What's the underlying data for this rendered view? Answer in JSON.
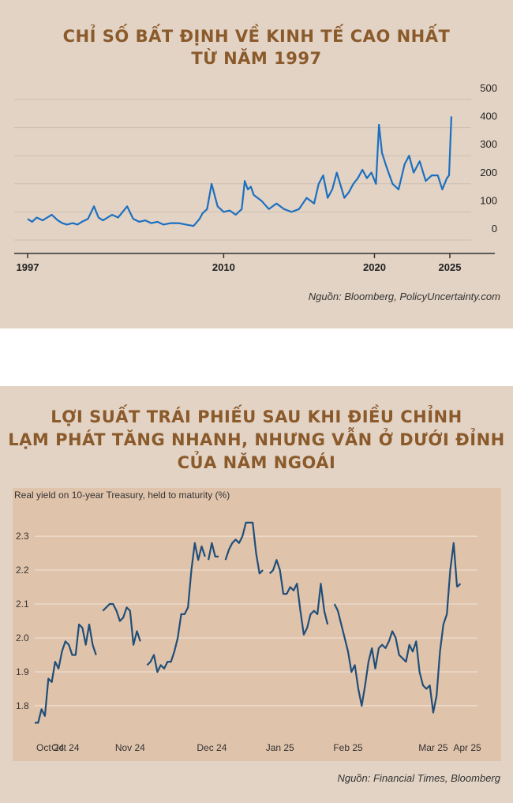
{
  "chart_data": [
    {
      "type": "line",
      "title": "CHỈ SỐ BẤT ĐỊNH VỀ KINH TẾ CAO NHẤT\nTỪ NĂM 1997",
      "xlabel": "",
      "ylabel": "",
      "x_ticks": [
        "1997",
        "2010",
        "2020",
        "2025"
      ],
      "y_ticks": [
        "0",
        "100",
        "200",
        "300",
        "400",
        "500"
      ],
      "xlim": [
        1997,
        2027.5
      ],
      "ylim": [
        0,
        500
      ],
      "y_axis_side": "right",
      "grid": true,
      "line_color": "#1c6fc0",
      "series": [
        {
          "x": [
            1997,
            1997.3,
            1997.6,
            1998,
            1998.3,
            1998.6,
            1999,
            1999.3,
            1999.6,
            2000,
            2000.3,
            2000.6,
            2001,
            2001.4,
            2001.7,
            2002,
            2002.3,
            2002.6,
            2003,
            2003.3,
            2003.6,
            2004,
            2004.4,
            2004.8,
            2005.2,
            2005.6,
            2006,
            2006.5,
            2007,
            2007.5,
            2008,
            2008.4,
            2008.6,
            2008.9,
            2009.2,
            2009.6,
            2010,
            2010.4,
            2010.8,
            2011.2,
            2011.4,
            2011.6,
            2011.8,
            2012,
            2012.5,
            2013,
            2013.5,
            2014,
            2014.5,
            2015,
            2015.5,
            2016,
            2016.3,
            2016.6,
            2016.9,
            2017.2,
            2017.5,
            2018,
            2018.3,
            2018.6,
            2018.9,
            2019.2,
            2019.5,
            2019.8,
            2020.1,
            2020.3,
            2020.5,
            2020.8,
            2021.2,
            2021.6,
            2022,
            2022.3,
            2022.6,
            2023,
            2023.4,
            2023.8,
            2024.2,
            2024.5,
            2024.8,
            2024.95,
            2025.1
          ],
          "y": [
            75,
            65,
            80,
            70,
            80,
            90,
            70,
            60,
            55,
            60,
            55,
            65,
            75,
            120,
            80,
            70,
            80,
            90,
            80,
            100,
            120,
            75,
            65,
            70,
            60,
            65,
            55,
            60,
            60,
            55,
            50,
            75,
            95,
            110,
            200,
            120,
            100,
            105,
            90,
            110,
            210,
            180,
            190,
            160,
            140,
            110,
            130,
            110,
            100,
            110,
            150,
            130,
            200,
            230,
            150,
            180,
            240,
            150,
            170,
            200,
            220,
            250,
            220,
            240,
            200,
            410,
            310,
            260,
            200,
            180,
            270,
            300,
            240,
            280,
            210,
            230,
            230,
            180,
            220,
            230,
            440
          ]
        }
      ]
    },
    {
      "type": "line",
      "title": "LỢI SUẤT TRÁI PHIẾU SAU KHI ĐIỀU CHỈNH\nLẠM PHÁT TĂNG NHANH, NHƯNG VẪN Ở DƯỚI ĐỈNH\nCỦA NĂM NGOÁI",
      "subtitle": "Real yield on 10-year Treasury, held to maturity (%)",
      "xlabel": "",
      "ylabel": "",
      "x_ticks": [
        "Oct 24",
        "Oct 24",
        "Nov 24",
        "Dec 24",
        "Jan 25",
        "Feb 25",
        "Mar 25",
        "Apr 25"
      ],
      "y_ticks": [
        "1.8",
        "1.9",
        "2.0",
        "2.1",
        "2.2",
        "2.3"
      ],
      "xlim": [
        0,
        130
      ],
      "ylim": [
        1.73,
        2.37
      ],
      "grid": true,
      "line_color": "#1f4e79",
      "segments": [
        {
          "x": [
            0,
            1,
            2,
            3,
            4,
            5,
            6,
            7,
            8,
            9,
            10,
            11,
            12,
            13,
            14,
            15,
            16,
            17,
            18,
            19,
            20,
            21,
            22
          ],
          "y": [
            1.75,
            1.75,
            1.79,
            1.77,
            1.88,
            1.87,
            1.93,
            1.91,
            1.96,
            1.99,
            1.98,
            1.95,
            1.95,
            2.04,
            2.03,
            1.98,
            2.04,
            1.98,
            1.95,
            null,
            null,
            null,
            null
          ]
        },
        {
          "x": [
            20,
            21,
            22,
            23,
            24,
            25,
            26,
            27,
            28,
            29,
            30,
            31
          ],
          "y": [
            2.08,
            2.09,
            2.1,
            2.1,
            2.08,
            2.05,
            2.06,
            2.09,
            2.08,
            1.98,
            2.02,
            1.99
          ]
        },
        {
          "x": [
            33,
            34,
            35,
            36,
            37,
            38,
            39,
            40,
            41,
            42,
            43,
            44,
            45,
            46,
            47,
            48,
            49,
            50
          ],
          "y": [
            1.92,
            1.93,
            1.95,
            1.9,
            1.92,
            1.91,
            1.93,
            1.93,
            1.96,
            2.0,
            2.07,
            2.07,
            2.09,
            2.2,
            2.28,
            2.23,
            2.27,
            2.24
          ]
        },
        {
          "x": [
            51,
            52,
            53,
            54
          ],
          "y": [
            2.23,
            2.28,
            2.24,
            2.24
          ]
        },
        {
          "x": [
            56,
            57,
            58,
            59,
            60,
            61,
            62,
            63,
            64,
            65,
            66,
            67,
            68,
            69
          ],
          "y": [
            2.23,
            2.26,
            2.28,
            2.29,
            2.28,
            2.3,
            2.34,
            2.34,
            2.34,
            2.25,
            2.19,
            2.2,
            null,
            null
          ]
        },
        {
          "x": [
            69,
            70,
            71,
            72,
            73,
            74,
            75,
            76,
            77,
            78,
            79,
            80,
            81,
            82,
            83,
            84,
            85
          ],
          "y": [
            2.19,
            2.2,
            2.23,
            2.2,
            2.13,
            2.13,
            2.15,
            2.14,
            2.16,
            2.08,
            2.01,
            2.03,
            2.07,
            2.08,
            2.07,
            2.16,
            2.08
          ]
        },
        {
          "x": [
            85,
            86
          ],
          "y": [
            2.08,
            2.04
          ]
        },
        {
          "x": [
            88,
            89,
            90,
            91,
            92,
            93,
            94,
            95,
            96,
            97,
            98,
            99,
            100,
            101,
            102,
            103,
            104,
            105,
            106,
            107,
            108,
            109,
            110,
            111,
            112,
            113,
            114,
            115,
            116,
            117,
            118,
            119,
            120,
            121,
            122,
            123,
            124
          ],
          "y": [
            2.1,
            2.08,
            2.04,
            2.0,
            1.96,
            1.9,
            1.92,
            1.85,
            1.8,
            1.86,
            1.93,
            1.97,
            1.91,
            1.97,
            1.98,
            1.97,
            1.99,
            2.02,
            2.0,
            1.95,
            1.94,
            1.93,
            1.98,
            1.96,
            1.99,
            1.9,
            1.86,
            1.85,
            1.86,
            1.78,
            1.83,
            1.96,
            2.04,
            2.07,
            2.2,
            2.28,
            2.15
          ]
        },
        {
          "x": [
            124,
            125
          ],
          "y": [
            2.15,
            2.16
          ]
        }
      ]
    }
  ],
  "sources": {
    "source1": "Nguồn: Bloomberg, PolicyUncertainty.com",
    "source2": "Nguồn: Financial Times, Bloomberg"
  },
  "titles": {
    "t1_line1": "CHỈ SỐ BẤT ĐỊNH VỀ KINH TẾ CAO NHẤT",
    "t1_line2": "TỪ NĂM 1997",
    "t2_line1": "LỢI SUẤT TRÁI PHIẾU SAU KHI ĐIỀU CHỈNH",
    "t2_line2": "LẠM PHÁT TĂNG NHANH, NHƯNG VẪN Ở DƯỚI ĐỈNH",
    "t2_line3": "CỦA NĂM NGOÁI"
  },
  "colors": {
    "panel_bg": "#e2d3c4",
    "title": "#8b5a2b",
    "chart2_bg": "#e0c3ab"
  }
}
